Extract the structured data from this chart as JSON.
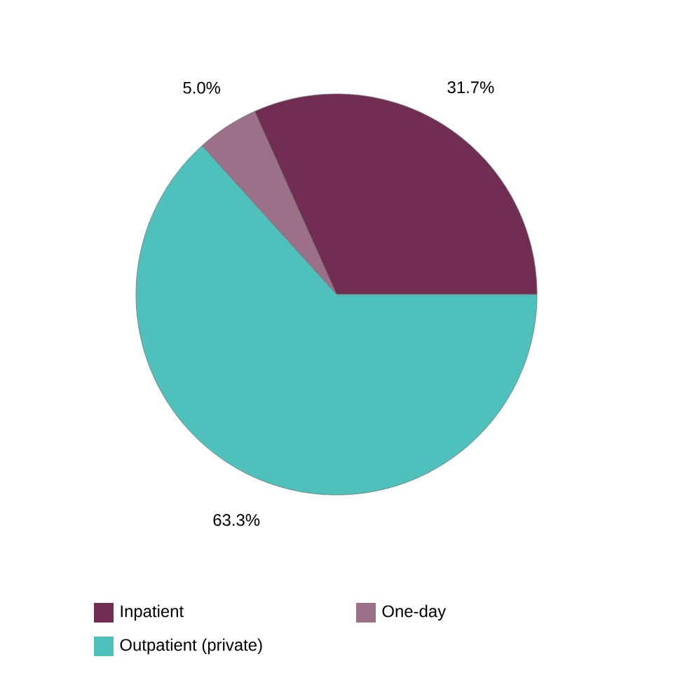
{
  "chart_data": {
    "type": "pie",
    "categories": [
      "Inpatient",
      "One-day",
      "Outpatient (private)"
    ],
    "values": [
      31.7,
      5.0,
      63.3
    ],
    "colors": [
      "#722d52",
      "#9c7088",
      "#4fc1bd"
    ],
    "value_labels": [
      "31.7%",
      "5.0%",
      "63.3%"
    ],
    "legend": "bottom"
  }
}
